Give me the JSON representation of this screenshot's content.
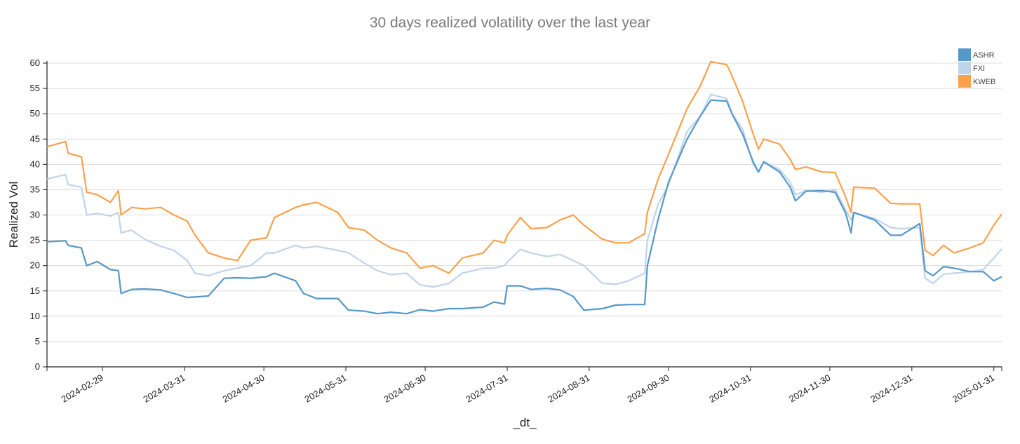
{
  "chart_data": {
    "type": "line",
    "title": "30 days realized volatility over the last year",
    "xlabel": "_dt_",
    "ylabel": "Realized Vol",
    "ylim": [
      0,
      60
    ],
    "xlim": [
      "2024-02-08",
      "2025-02-03"
    ],
    "grid": true,
    "legend_position": "top-right",
    "y_ticks": [
      0,
      5,
      10,
      15,
      20,
      25,
      30,
      35,
      40,
      45,
      50,
      55,
      60
    ],
    "x_ticks": [
      "2024-02-29",
      "2024-03-31",
      "2024-04-30",
      "2024-05-31",
      "2024-06-30",
      "2024-07-31",
      "2024-08-31",
      "2024-09-30",
      "2024-10-31",
      "2024-11-30",
      "2024-12-31",
      "2025-01-31"
    ],
    "x": [
      "2024-02-08",
      "2024-02-15",
      "2024-02-16",
      "2024-02-21",
      "2024-02-23",
      "2024-02-27",
      "2024-03-03",
      "2024-03-06",
      "2024-03-07",
      "2024-03-11",
      "2024-03-16",
      "2024-03-22",
      "2024-03-27",
      "2024-04-01",
      "2024-04-04",
      "2024-04-09",
      "2024-04-15",
      "2024-04-20",
      "2024-04-25",
      "2024-05-01",
      "2024-05-04",
      "2024-05-12",
      "2024-05-15",
      "2024-05-20",
      "2024-05-28",
      "2024-06-01",
      "2024-06-07",
      "2024-06-12",
      "2024-06-17",
      "2024-06-23",
      "2024-06-28",
      "2024-07-03",
      "2024-07-09",
      "2024-07-14",
      "2024-07-22",
      "2024-07-26",
      "2024-07-30",
      "2024-07-31",
      "2024-08-05",
      "2024-08-09",
      "2024-08-15",
      "2024-08-20",
      "2024-08-25",
      "2024-08-29",
      "2024-09-05",
      "2024-09-10",
      "2024-09-15",
      "2024-09-21",
      "2024-09-22",
      "2024-09-26",
      "2024-09-30",
      "2024-10-07",
      "2024-10-12",
      "2024-10-16",
      "2024-10-22",
      "2024-10-24",
      "2024-10-28",
      "2024-11-01",
      "2024-11-03",
      "2024-11-05",
      "2024-11-11",
      "2024-11-15",
      "2024-11-17",
      "2024-11-21",
      "2024-11-27",
      "2024-12-02",
      "2024-12-06",
      "2024-12-08",
      "2024-12-09",
      "2024-12-17",
      "2024-12-23",
      "2024-12-27",
      "2025-01-03",
      "2025-01-05",
      "2025-01-08",
      "2025-01-12",
      "2025-01-16",
      "2025-01-22",
      "2025-01-27",
      "2025-01-31",
      "2025-02-03"
    ],
    "series": [
      {
        "name": "ASHR",
        "color": "#5598c7",
        "values": [
          24.7,
          24.9,
          24,
          23.5,
          20,
          20.8,
          19.2,
          19,
          14.5,
          15.3,
          15.4,
          15.2,
          14.5,
          13.7,
          13.8,
          14,
          17.5,
          17.6,
          17.5,
          17.8,
          18.5,
          17,
          14.5,
          13.5,
          13.5,
          11.2,
          11,
          10.5,
          10.8,
          10.5,
          11.3,
          11,
          11.5,
          11.5,
          11.8,
          12.8,
          12.4,
          16,
          16,
          15.3,
          15.5,
          15.2,
          13.9,
          11.2,
          11.5,
          12.2,
          12.3,
          12.3,
          20,
          29,
          36.5,
          45,
          49.5,
          52.7,
          52.5,
          50,
          46,
          40.5,
          38.5,
          40.5,
          38.5,
          35.5,
          32.8,
          34.7,
          34.8,
          34.5,
          30.3,
          26.5,
          30.5,
          29,
          26,
          26,
          28.3,
          19,
          18,
          19.8,
          19.5,
          18.8,
          18.8,
          17,
          17.8
        ]
      },
      {
        "name": "FXI",
        "color": "#bfd4ec",
        "values": [
          37.1,
          38,
          36,
          35.5,
          30,
          30.3,
          29.8,
          30.5,
          26.5,
          27,
          25.2,
          23.8,
          23,
          21,
          18.5,
          18,
          19,
          19.5,
          20,
          22.5,
          22.5,
          24,
          23.5,
          23.8,
          23,
          22.5,
          20.5,
          19,
          18.2,
          18.5,
          16.2,
          15.8,
          16.5,
          18.5,
          19.5,
          19.5,
          20,
          20.7,
          23.2,
          22.5,
          21.8,
          22.2,
          21,
          20,
          16.5,
          16.3,
          17,
          18.5,
          25,
          32,
          36,
          46.5,
          49.5,
          53.8,
          53,
          50,
          47,
          40,
          38.5,
          40.5,
          39,
          36.5,
          34,
          34.8,
          34.5,
          35,
          31,
          29,
          30.5,
          29.3,
          27.5,
          27.3,
          27.5,
          17.5,
          16.5,
          18.3,
          18.5,
          18.8,
          19.2,
          21.5,
          23.3
        ]
      },
      {
        "name": "KWEB",
        "color": "#fba14c",
        "values": [
          43.5,
          44.5,
          42.2,
          41.5,
          34.5,
          34,
          32.5,
          34.8,
          30,
          31.5,
          31.2,
          31.5,
          30,
          28.8,
          26,
          22.5,
          21.5,
          21,
          25,
          25.5,
          29.5,
          31.5,
          32,
          32.5,
          30.5,
          27.5,
          27,
          25,
          23.5,
          22.5,
          19.5,
          20,
          18.5,
          21.5,
          22.5,
          25,
          24.5,
          26,
          29.5,
          27.3,
          27.5,
          29,
          30,
          28,
          25.2,
          24.5,
          24.5,
          26.3,
          30.5,
          37,
          42,
          51,
          55.5,
          60.3,
          59.7,
          57.5,
          52.5,
          46,
          43,
          45,
          44,
          41,
          39,
          39.5,
          38.5,
          38.4,
          33.5,
          30.5,
          35.5,
          35.3,
          32.3,
          32.2,
          32.2,
          23,
          22,
          24,
          22.5,
          23.5,
          24.5,
          28,
          30.2
        ]
      }
    ]
  }
}
